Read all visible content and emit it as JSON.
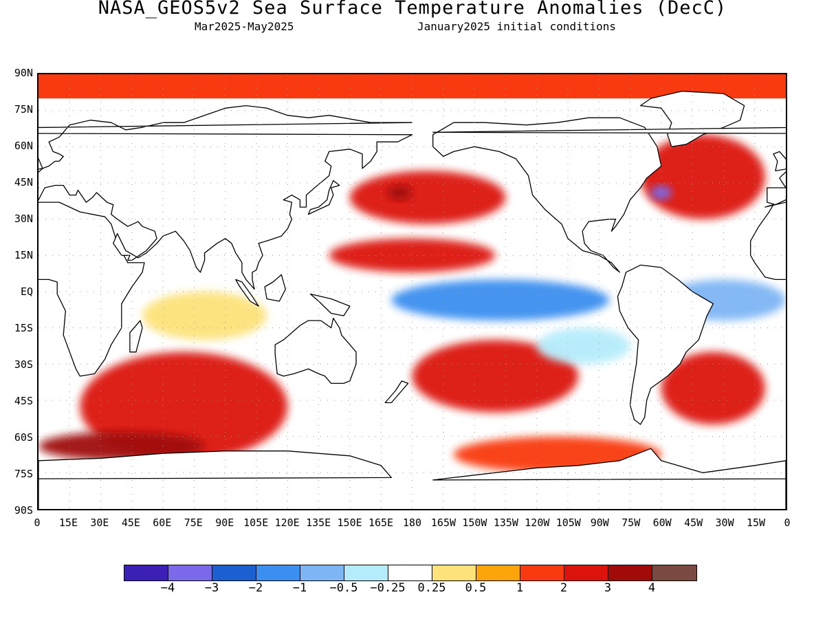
{
  "header": {
    "title": "NASA_GEOS5v2 Sea Surface Temperature Anomalies (DecC)",
    "period": "Mar2025-May2025",
    "initial_conditions": "January2025 initial conditions"
  },
  "axes": {
    "lat_labels": [
      "90N",
      "75N",
      "60N",
      "45N",
      "30N",
      "15N",
      "EQ",
      "15S",
      "30S",
      "45S",
      "60S",
      "75S",
      "90S"
    ],
    "lon_labels": [
      "0",
      "15E",
      "30E",
      "45E",
      "60E",
      "75E",
      "90E",
      "105E",
      "120E",
      "135E",
      "150E",
      "165E",
      "180",
      "165W",
      "150W",
      "135W",
      "120W",
      "105W",
      "90W",
      "75W",
      "60W",
      "45W",
      "30W",
      "15W",
      "0"
    ]
  },
  "legend": {
    "colors": [
      "#3c1fb4",
      "#7a6aea",
      "#1b5fd0",
      "#3b8ff0",
      "#7eb6f5",
      "#b5ecfb",
      "#ffffff",
      "#fde27a",
      "#fda40a",
      "#f93a10",
      "#dc120c",
      "#a00a08",
      "#7a4a40"
    ],
    "labels": [
      "-4",
      "-3",
      "-2",
      "-1",
      "-0.5",
      "-0.25",
      "0.25",
      "0.5",
      "1",
      "2",
      "3",
      "4"
    ]
  },
  "map_data": {
    "type": "filled-contour-map",
    "variable": "Sea Surface Temperature Anomalies",
    "units": "DecC",
    "lon_range": [
      0,
      360
    ],
    "lat_range": [
      -90,
      90
    ],
    "regions": [
      {
        "area": "Arctic Ocean",
        "lon": [
          0,
          360
        ],
        "lat": [
          80,
          90
        ],
        "level": "1"
      },
      {
        "area": "North Pacific 30N-45N",
        "lon": [
          150,
          225
        ],
        "lat": [
          28,
          50
        ],
        "level": "2"
      },
      {
        "area": "North Pacific peak",
        "lon": [
          168,
          180
        ],
        "lat": [
          38,
          44
        ],
        "level": "3"
      },
      {
        "area": "North Pacific 15N",
        "lon": [
          140,
          220
        ],
        "lat": [
          8,
          22
        ],
        "level": "2"
      },
      {
        "area": "Equatorial Pacific",
        "lon": [
          170,
          275
        ],
        "lat": [
          -12,
          5
        ],
        "level": "-1"
      },
      {
        "area": "Tropical Atlantic",
        "lon": [
          300,
          360
        ],
        "lat": [
          -12,
          5
        ],
        "level": "-0.5"
      },
      {
        "area": "North Atlantic",
        "lon": [
          290,
          350
        ],
        "lat": [
          30,
          65
        ],
        "level": "2"
      },
      {
        "area": "Gulf Stream",
        "lon": [
          295,
          305
        ],
        "lat": [
          38,
          44
        ],
        "level": "-3"
      },
      {
        "area": "Southern Indian Ocean",
        "lon": [
          20,
          120
        ],
        "lat": [
          -70,
          -25
        ],
        "level": "2"
      },
      {
        "area": "Southern Ocean 60S",
        "lon": [
          0,
          80
        ],
        "lat": [
          -70,
          -58
        ],
        "level": "3"
      },
      {
        "area": "South Pacific",
        "lon": [
          180,
          260
        ],
        "lat": [
          -50,
          -20
        ],
        "level": "2"
      },
      {
        "area": "South Atlantic",
        "lon": [
          300,
          350
        ],
        "lat": [
          -55,
          -25
        ],
        "level": "2"
      },
      {
        "area": "Southeast Pacific",
        "lon": [
          240,
          285
        ],
        "lat": [
          -30,
          -15
        ],
        "level": "-0.25"
      },
      {
        "area": "Southern Ocean 70S",
        "lon": [
          200,
          300
        ],
        "lat": [
          -75,
          -60
        ],
        "level": "1"
      },
      {
        "area": "Indian Ocean 15S",
        "lon": [
          50,
          110
        ],
        "lat": [
          -20,
          0
        ],
        "level": "0.25"
      }
    ]
  }
}
